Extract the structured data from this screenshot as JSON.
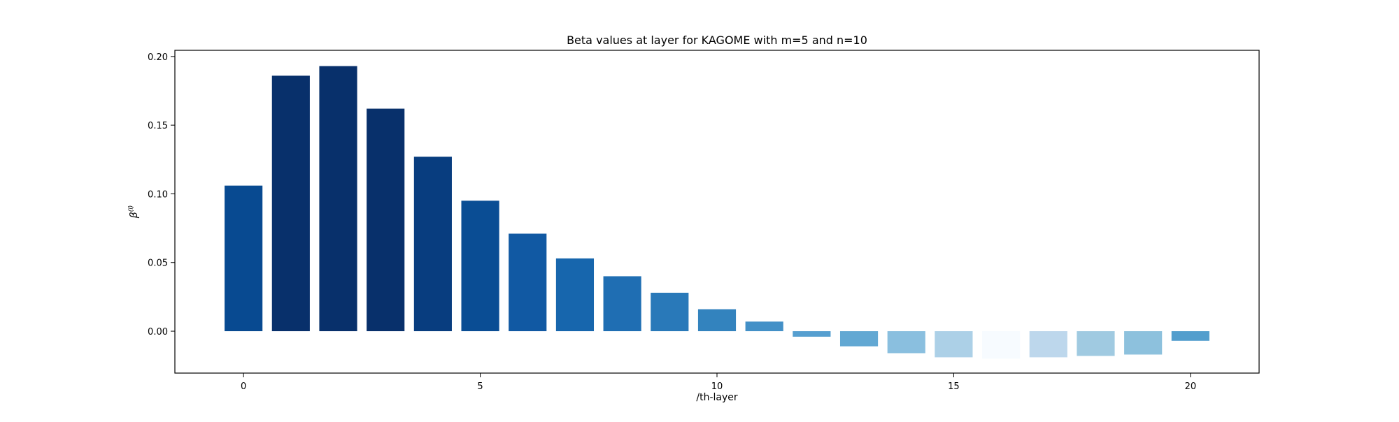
{
  "chart_data": {
    "type": "bar",
    "title": "Beta values at layer for KAGOME with m=5 and n=10",
    "xlabel": "/th-layer",
    "ylabel": "β(l)",
    "ylabel_base": "β",
    "ylabel_sup": "(l)",
    "x": [
      0,
      1,
      2,
      3,
      4,
      5,
      6,
      7,
      8,
      9,
      10,
      11,
      12,
      13,
      14,
      15,
      16,
      17,
      18,
      19,
      20
    ],
    "values": [
      0.106,
      0.186,
      0.193,
      0.162,
      0.127,
      0.095,
      0.071,
      0.053,
      0.04,
      0.028,
      0.016,
      0.007,
      -0.004,
      -0.011,
      -0.016,
      -0.019,
      -0.02,
      -0.019,
      -0.018,
      -0.017,
      -0.007
    ],
    "bar_colors": [
      "#084a91",
      "#08306b",
      "#08306b",
      "#08306b",
      "#083d7f",
      "#0a4d94",
      "#1159a3",
      "#1766ad",
      "#1f6eb3",
      "#2979b9",
      "#3383be",
      "#4390c7",
      "#569fd0",
      "#62a8d3",
      "#8abfdf",
      "#acd0e7",
      "#f7fbff",
      "#bdd7ec",
      "#a0cae1",
      "#8dc1dd",
      "#539ecd"
    ],
    "xlim": [
      -1.45,
      21.45
    ],
    "ylim": [
      -0.0305,
      0.2045
    ],
    "xticks": [
      0,
      5,
      10,
      15,
      20
    ],
    "xtick_labels": [
      "0",
      "5",
      "10",
      "15",
      "20"
    ],
    "yticks": [
      0.0,
      0.05,
      0.1,
      0.15,
      0.2
    ],
    "ytick_labels": [
      "0.00",
      "0.05",
      "0.10",
      "0.15",
      "0.20"
    ],
    "grid": false,
    "legend": "none"
  }
}
